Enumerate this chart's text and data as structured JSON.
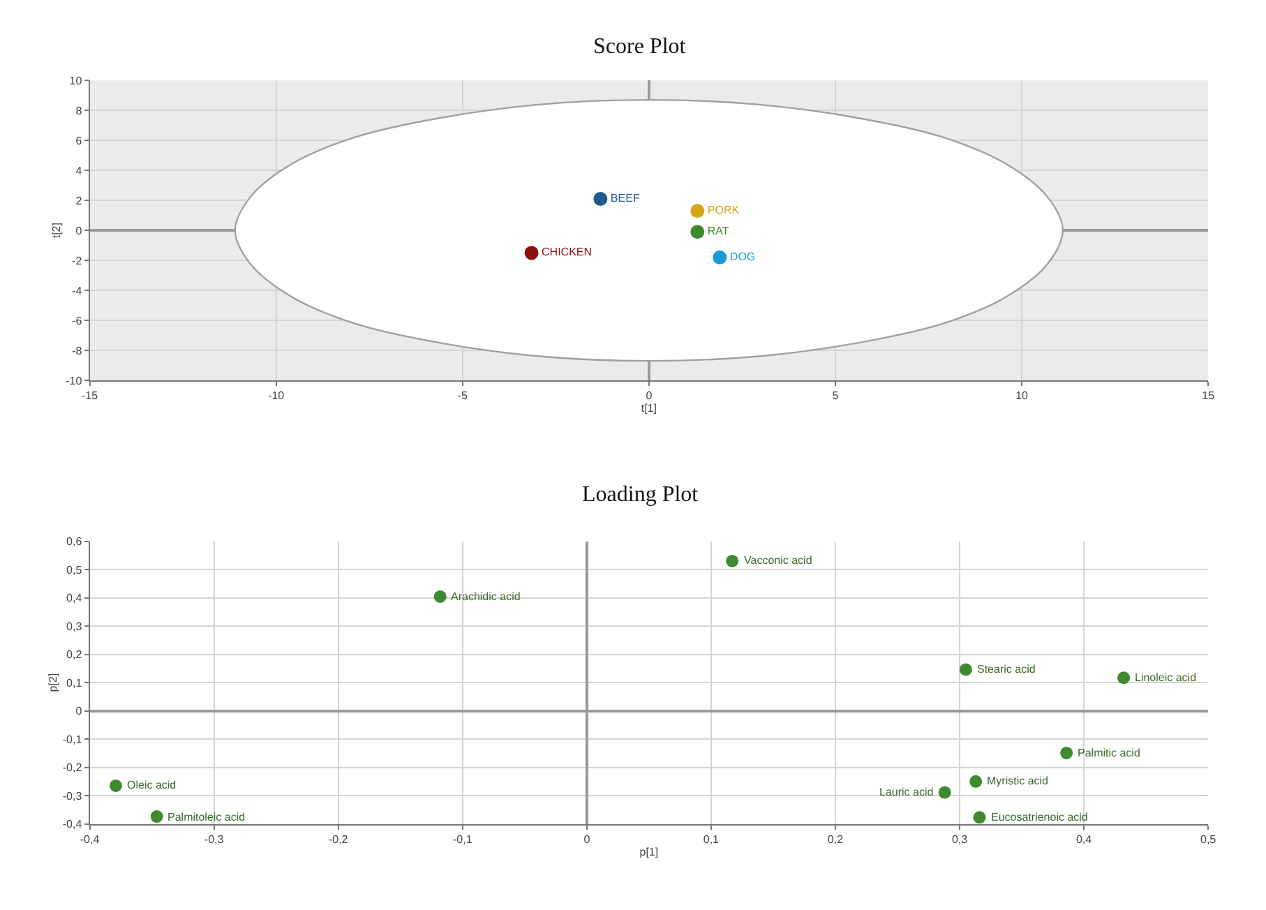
{
  "chart_data": [
    {
      "type": "scatter",
      "title": "Score Plot",
      "xlabel": "t[1]",
      "ylabel": "t[2]",
      "xlim": [
        -15,
        15
      ],
      "xticks": [
        -15,
        -10,
        -5,
        0,
        5,
        10,
        15
      ],
      "ylim": [
        -10,
        10
      ],
      "yticks": [
        -10,
        -8,
        -6,
        -4,
        -2,
        0,
        2,
        4,
        6,
        8,
        10
      ],
      "grid": true,
      "marker": "circle",
      "legend": false,
      "series": [
        {
          "type": "area",
          "marker": "none",
          "color": "#a0a0a0",
          "x": [
            11.1,
            10.7,
            9.6,
            7.9,
            5.6,
            2.9,
            0,
            -2.9,
            -5.6,
            -7.9,
            -9.6,
            -10.7,
            -11.1,
            -10.7,
            -9.6,
            -7.9,
            -5.6,
            -2.9,
            0,
            2.9,
            5.6,
            7.9,
            9.6,
            10.7,
            11.1
          ],
          "values": [
            0,
            2.2,
            4.4,
            6.2,
            7.5,
            8.4,
            8.7,
            8.4,
            7.5,
            6.2,
            4.4,
            2.2,
            0,
            -2.2,
            -4.4,
            -6.2,
            -7.5,
            -8.4,
            -8.7,
            -8.4,
            -7.5,
            -6.2,
            -4.4,
            -2.2,
            0
          ]
        },
        {
          "name": "RAT",
          "color": "#3f8a2e",
          "x": [
            1.3
          ],
          "values": [
            -0.1
          ]
        },
        {
          "name": "BEEF",
          "color": "#1f5a8c",
          "x": [
            -1.3
          ],
          "values": [
            2.1
          ]
        },
        {
          "name": "CHICKEN",
          "color": "#8b1010",
          "x": [
            -3.15
          ],
          "values": [
            -1.5
          ]
        },
        {
          "name": "PORK",
          "color": "#d4a514",
          "x": [
            1.3
          ],
          "values": [
            1.3
          ]
        },
        {
          "name": "DOG",
          "color": "#1a9ad6",
          "x": [
            1.9
          ],
          "values": [
            -1.8
          ]
        }
      ]
    },
    {
      "type": "scatter",
      "title": "Loading Plot",
      "xlabel": "p[1]",
      "ylabel": "p[2]",
      "xlim": [
        -0.4,
        0.5
      ],
      "xticks": [
        {
          "value": -0.4,
          "label": "-0,4"
        },
        {
          "value": -0.3,
          "label": "-0,3"
        },
        {
          "value": -0.2,
          "label": "-0,2"
        },
        {
          "value": -0.1,
          "label": "-0,1"
        },
        0,
        {
          "value": 0.1,
          "label": "0,1"
        },
        {
          "value": 0.2,
          "label": "0,2"
        },
        {
          "value": 0.3,
          "label": "0,3"
        },
        {
          "value": 0.4,
          "label": "0,4"
        },
        {
          "value": 0.5,
          "label": "0,5"
        }
      ],
      "ylim": [
        -0.4,
        0.6
      ],
      "yticks": [
        {
          "value": -0.4,
          "label": "-0,4"
        },
        {
          "value": -0.3,
          "label": "-0,3"
        },
        {
          "value": -0.2,
          "label": "-0,2"
        },
        {
          "value": -0.1,
          "label": "-0,1"
        },
        0,
        {
          "value": 0.1,
          "label": "0,1"
        },
        {
          "value": 0.2,
          "label": "0,2"
        },
        {
          "value": 0.3,
          "label": "0,3"
        },
        {
          "value": 0.4,
          "label": "0,4"
        },
        {
          "value": 0.5,
          "label": "0,5"
        },
        {
          "value": 0.6,
          "label": "0,6"
        }
      ],
      "grid": true,
      "marker": "circle",
      "legend": false,
      "color": "#3f8a2e",
      "x": [
        -0.379,
        -0.346,
        -0.118,
        0.117,
        0.305,
        0.432,
        0.386,
        0.313,
        0.288,
        0.316
      ],
      "values": [
        -0.265,
        -0.374,
        0.404,
        0.53,
        0.146,
        0.117,
        -0.149,
        -0.25,
        -0.289,
        -0.377
      ],
      "annotations": [
        {
          "text": "Oleic acid",
          "x": -0.379,
          "y": -0.265
        },
        {
          "text": "Palmitoleic acid",
          "x": -0.346,
          "y": -0.374
        },
        {
          "text": "Arachidic acid",
          "x": -0.118,
          "y": 0.404
        },
        {
          "text": "Vacconic acid",
          "x": 0.117,
          "y": 0.53
        },
        {
          "text": "Stearic acid",
          "x": 0.305,
          "y": 0.146
        },
        {
          "text": "Linoleic acid",
          "x": 0.432,
          "y": 0.117
        },
        {
          "text": "Palmitic acid",
          "x": 0.386,
          "y": -0.149
        },
        {
          "text": "Myristic acid",
          "x": 0.313,
          "y": -0.25
        },
        {
          "text": "Lauric acid",
          "x": 0.288,
          "y": -0.289
        },
        {
          "text": "Eucosatrienoic acid",
          "x": 0.316,
          "y": -0.377
        }
      ]
    }
  ]
}
